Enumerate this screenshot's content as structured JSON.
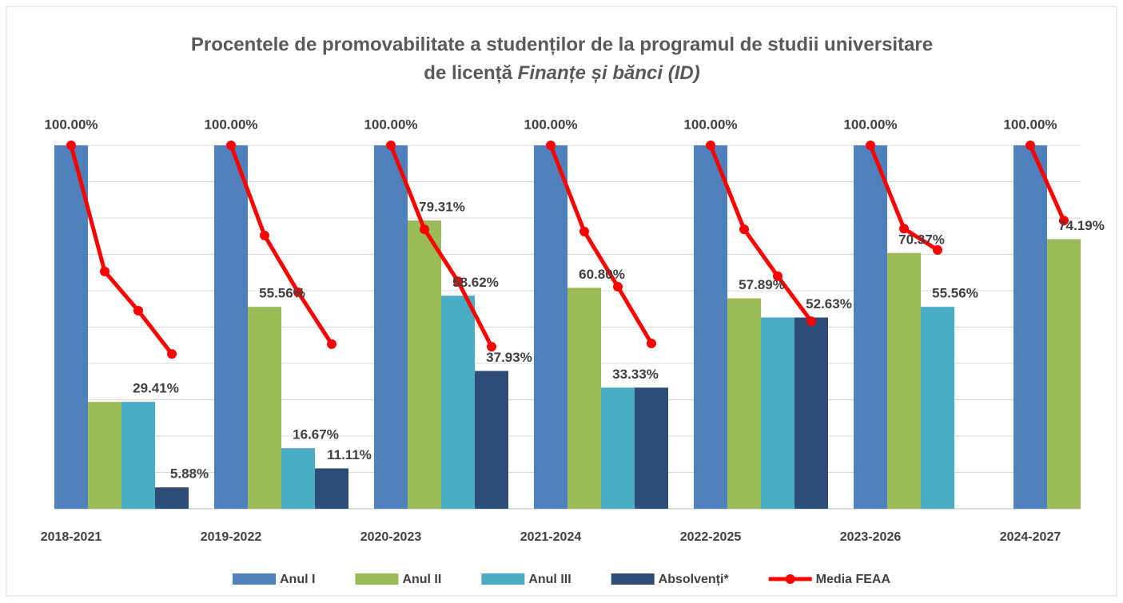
{
  "chart_data": {
    "type": "bar",
    "title": {
      "line1": "Procentele de promovabilitate a studenților de la programul de studii universitare",
      "line2": "de licență",
      "line2_italic": "Finanțe și bănci (ID)"
    },
    "categories": [
      "2018-2021",
      "2019-2022",
      "2020-2023",
      "2021-2024",
      "2022-2025",
      "2023-2026",
      "2024-2027"
    ],
    "ylim": [
      0,
      100
    ],
    "yticks": [
      0,
      10,
      20,
      30,
      40,
      50,
      60,
      70,
      80,
      90,
      100
    ],
    "grid": true,
    "legend": "bottom",
    "series": [
      {
        "name": "Anul I",
        "color": "#4f81bd",
        "values": [
          100,
          100,
          100,
          100,
          100,
          100,
          100
        ],
        "value_labels": [
          "100.00%",
          "100.00%",
          "100.00%",
          "100.00%",
          "100.00%",
          "100.00%",
          "100.00%"
        ]
      },
      {
        "name": "Anul II",
        "color": "#9bbb59",
        "values": [
          29.41,
          55.56,
          79.31,
          60.8,
          57.89,
          70.37,
          74.19
        ],
        "value_labels": [
          null,
          "55.56%",
          "79.31%",
          "60.80%",
          "57.89%",
          "70.37%",
          "74.19%"
        ]
      },
      {
        "name": "Anul III",
        "color": "#4bacc6",
        "values": [
          29.41,
          16.67,
          58.62,
          33.33,
          52.63,
          55.56,
          null
        ],
        "value_labels": [
          "29.41%",
          "16.67%",
          "58.62%",
          "33.33%",
          null,
          "55.56%",
          null
        ]
      },
      {
        "name": "Absolvenți*",
        "color": "#2c4d75",
        "values": [
          5.88,
          11.11,
          37.93,
          33.33,
          52.63,
          null,
          null
        ],
        "value_labels": [
          "5.88%",
          "11.11%",
          "37.93%",
          null,
          "52.63%",
          null,
          null
        ]
      },
      {
        "name": "Media FEAA",
        "type": "line",
        "color": "#ff0000",
        "values": [
          [
            100,
            65.3,
            54.5,
            42.6
          ],
          [
            100,
            75.2,
            59.6,
            45.3
          ],
          [
            100,
            76.9,
            62.6,
            44.6
          ],
          [
            100,
            76.3,
            61.1,
            45.5
          ],
          [
            100,
            76.9,
            64.0,
            51.6
          ],
          [
            100,
            77.1,
            71.2,
            null
          ],
          [
            100,
            79.3,
            null,
            null
          ]
        ]
      }
    ]
  }
}
